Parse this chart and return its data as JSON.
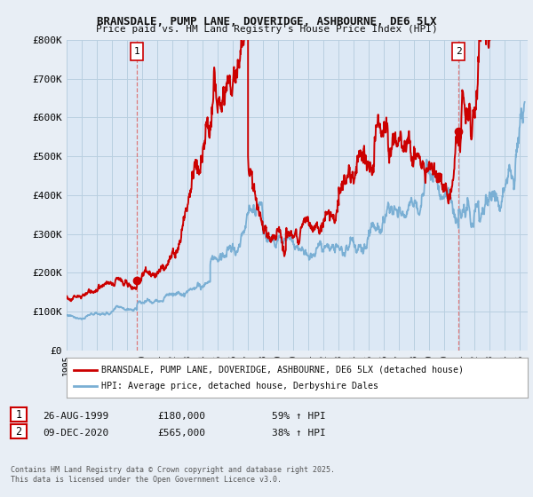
{
  "title1": "BRANSDALE, PUMP LANE, DOVERIDGE, ASHBOURNE, DE6 5LX",
  "title2": "Price paid vs. HM Land Registry's House Price Index (HPI)",
  "bg_color": "#e8eef5",
  "plot_bg_color": "#dce8f5",
  "grid_color": "#b8cfe0",
  "red_color": "#cc0000",
  "blue_color": "#7aafd4",
  "vline_color": "#dd6666",
  "ylim": [
    0,
    800000
  ],
  "yticks": [
    0,
    100000,
    200000,
    300000,
    400000,
    500000,
    600000,
    700000,
    800000
  ],
  "ytick_labels": [
    "£0",
    "£100K",
    "£200K",
    "£300K",
    "£400K",
    "£500K",
    "£600K",
    "£700K",
    "£800K"
  ],
  "legend_label_red": "BRANSDALE, PUMP LANE, DOVERIDGE, ASHBOURNE, DE6 5LX (detached house)",
  "legend_label_blue": "HPI: Average price, detached house, Derbyshire Dales",
  "annotation1_date": "26-AUG-1999",
  "annotation1_price": "£180,000",
  "annotation1_hpi": "59% ↑ HPI",
  "annotation2_date": "09-DEC-2020",
  "annotation2_price": "£565,000",
  "annotation2_hpi": "38% ↑ HPI",
  "footer": "Contains HM Land Registry data © Crown copyright and database right 2025.\nThis data is licensed under the Open Government Licence v3.0.",
  "sale1_x": 1999.65,
  "sale1_y": 180000,
  "sale2_x": 2020.92,
  "sale2_y": 565000,
  "xlim_start": 1995,
  "xlim_end": 2025.5
}
